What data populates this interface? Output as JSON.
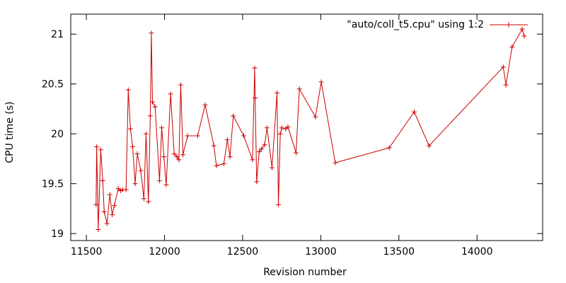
{
  "chart_data": {
    "type": "line",
    "xlabel": "Revision number",
    "ylabel": "CPU time (s)",
    "xlim": [
      11400,
      14420
    ],
    "ylim": [
      18.93,
      21.2
    ],
    "xticks": [
      11500,
      12000,
      12500,
      13000,
      13500,
      14000
    ],
    "yticks": [
      19,
      19.5,
      20,
      20.5,
      21
    ],
    "ytick_labels": [
      "19",
      "19.5",
      "20",
      "20.5",
      "21"
    ],
    "grid": false,
    "legend_position": "top-right",
    "series": [
      {
        "name": "\"auto/coll_t5.cpu\" using 1:2",
        "color": "#cc0000",
        "marker": "plus",
        "x": [
          11562,
          11566,
          11576,
          11592,
          11605,
          11614,
          11632,
          11650,
          11665,
          11679,
          11704,
          11719,
          11733,
          11754,
          11768,
          11782,
          11796,
          11812,
          11826,
          11848,
          11868,
          11882,
          11897,
          11909,
          11916,
          11923,
          11940,
          11968,
          11982,
          11996,
          12011,
          12039,
          12062,
          12080,
          12092,
          12104,
          12118,
          12148,
          12212,
          12260,
          12316,
          12332,
          12380,
          12402,
          12419,
          12440,
          12507,
          12563,
          12577,
          12580,
          12590,
          12606,
          12621,
          12641,
          12656,
          12688,
          12720,
          12729,
          12741,
          12751,
          12775,
          12790,
          12842,
          12863,
          12966,
          13003,
          13093,
          13438,
          13598,
          13693,
          14168,
          14185,
          14224,
          14289,
          14302
        ],
        "y": [
          19.29,
          19.87,
          19.04,
          19.84,
          19.53,
          19.22,
          19.1,
          19.39,
          19.19,
          19.28,
          19.45,
          19.43,
          19.44,
          19.44,
          20.44,
          20.05,
          19.87,
          19.5,
          19.8,
          19.63,
          19.35,
          20.0,
          19.32,
          20.18,
          21.01,
          20.32,
          20.27,
          19.53,
          20.06,
          19.77,
          19.49,
          20.4,
          19.8,
          19.77,
          19.74,
          20.49,
          19.79,
          19.98,
          19.98,
          20.29,
          19.88,
          19.68,
          19.7,
          19.94,
          19.77,
          20.18,
          19.98,
          19.74,
          20.66,
          20.36,
          19.52,
          19.82,
          19.85,
          19.89,
          20.06,
          19.66,
          20.41,
          19.29,
          20.0,
          20.06,
          20.05,
          20.07,
          19.81,
          20.45,
          20.17,
          20.52,
          19.71,
          19.86,
          20.22,
          19.88,
          20.67,
          20.49,
          20.87,
          21.05,
          20.98
        ]
      }
    ]
  }
}
